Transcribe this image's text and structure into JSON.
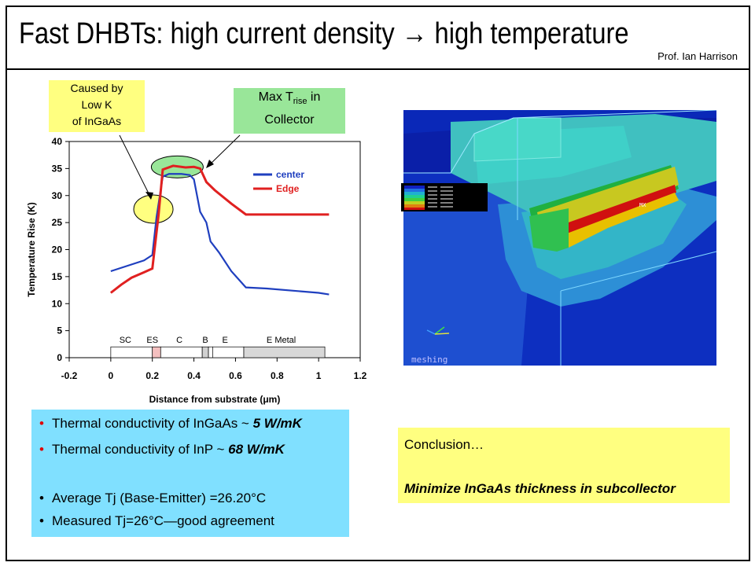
{
  "slide": {
    "title": "Fast DHBTs: high current density → high temperature",
    "author": "Prof. Ian Harrison"
  },
  "callouts": [
    {
      "lines": [
        "Caused by",
        "Low K",
        "of InGaAs"
      ]
    },
    {
      "lines": [
        "Max T",
        "rise",
        " in",
        "Collector"
      ]
    }
  ],
  "chart_data": {
    "type": "line",
    "xlabel": "Distance from substrate (μm)",
    "ylabel": "Temperature Rise (K)",
    "xlim": [
      -0.2,
      1.2
    ],
    "ylim": [
      0,
      40
    ],
    "xticks": [
      "-0.2",
      "0",
      "0.2",
      "0.4",
      "0.6",
      "0.8",
      "1",
      "1.2"
    ],
    "yticks": [
      "0",
      "5",
      "10",
      "15",
      "20",
      "25",
      "30",
      "35",
      "40"
    ],
    "legend_position": "top-right",
    "series": [
      {
        "name": "center",
        "color": "#1f3fbf",
        "x": [
          0.0,
          0.16,
          0.2,
          0.22,
          0.25,
          0.28,
          0.34,
          0.38,
          0.4,
          0.43,
          0.46,
          0.48,
          0.52,
          0.58,
          0.65,
          0.75,
          1.0,
          1.05
        ],
        "y": [
          16,
          18,
          19,
          26,
          33.5,
          34,
          34,
          33.8,
          33,
          27,
          25,
          21.5,
          19.5,
          16,
          13,
          12.8,
          12,
          11.7
        ]
      },
      {
        "name": "Edge",
        "color": "#e02020",
        "x": [
          0.0,
          0.05,
          0.1,
          0.16,
          0.2,
          0.23,
          0.25,
          0.3,
          0.36,
          0.4,
          0.43,
          0.46,
          0.5,
          0.58,
          0.65,
          0.75,
          1.0,
          1.05
        ],
        "y": [
          12,
          13.5,
          14.8,
          15.8,
          16.5,
          26.5,
          34.8,
          35.5,
          35.2,
          35.3,
          35,
          32.5,
          31,
          28.5,
          26.5,
          26.5,
          26.5,
          26.5
        ]
      }
    ],
    "region_labels": [
      "SC",
      "ES",
      "C",
      "B",
      "E",
      "E Metal"
    ]
  },
  "simulation": {
    "watermark": "meshing",
    "max_label": "MX"
  },
  "bullets": [
    {
      "text": "Thermal conductivity of InGaAs ~ ",
      "emph": "5 W/mK",
      "red": true
    },
    {
      "text": "Thermal conductivity of InP ~ ",
      "emph": "68 W/mK",
      "red": true
    },
    {
      "text": "Average Tj (Base-Emitter) =26.20°C",
      "emph": "",
      "red": false
    },
    {
      "text": "Measured Tj=26°C—good agreement",
      "emph": "",
      "red": false
    }
  ],
  "conclusion": {
    "heading": "Conclusion…",
    "body": "Minimize InGaAs thickness in subcollector"
  },
  "colors": {
    "bullet_box": "#80e0ff",
    "conclusion_box": "#ffff80",
    "callout_yellow": "#ffff80",
    "callout_green": "#99e699"
  }
}
